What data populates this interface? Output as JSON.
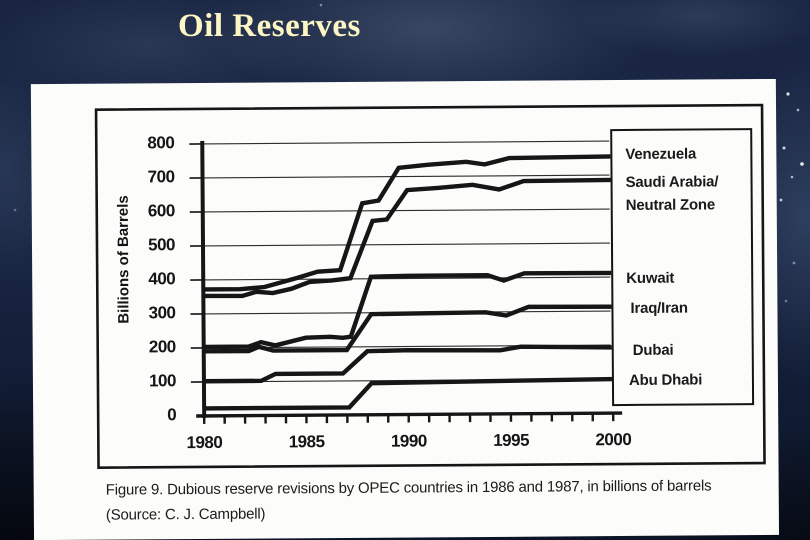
{
  "slide": {
    "title": "Oil Reserves"
  },
  "figure": {
    "caption_line1": "Figure 9. Dubious reserve revisions by OPEC countries in 1986 and 1987, in billions of barrels",
    "caption_line2": "(Source: C. J. Campbell)"
  },
  "chart_data": {
    "type": "line",
    "title": "",
    "xlabel": "",
    "ylabel": "Billions of Barrels",
    "xlim": [
      1979.7,
      2000.4
    ],
    "ylim": [
      0,
      800
    ],
    "y_ticks": [
      0,
      100,
      200,
      300,
      400,
      500,
      600,
      700,
      800
    ],
    "x_ticks": [
      1980,
      1985,
      1990,
      1995,
      2000
    ],
    "x_minor_tick_step": 1,
    "grid": true,
    "legend_position": "right-box",
    "ink_color": "#161616",
    "paper_color": "#fcfcfa",
    "legend_lines": [
      "Venezuela",
      "Saudi Arabia/",
      "Neutral Zone",
      "Kuwait",
      "Iraq/Iran",
      "Dubai",
      "Abu Dhabi"
    ],
    "series": [
      {
        "name": "Venezuela",
        "points": [
          [
            1980,
            372
          ],
          [
            1981.8,
            372
          ],
          [
            1983,
            378
          ],
          [
            1984.6,
            404
          ],
          [
            1985.6,
            422
          ],
          [
            1986.7,
            426
          ],
          [
            1987.8,
            622
          ],
          [
            1988.6,
            630
          ],
          [
            1989.6,
            726
          ],
          [
            1991,
            734
          ],
          [
            1992.9,
            742
          ],
          [
            1993.8,
            734
          ],
          [
            1995,
            752
          ],
          [
            2000,
            755
          ]
        ]
      },
      {
        "name": "Saudi Arabia/Neutral Zone",
        "points": [
          [
            1980,
            353
          ],
          [
            1981.9,
            352
          ],
          [
            1982.6,
            364
          ],
          [
            1983.4,
            360
          ],
          [
            1984.3,
            372
          ],
          [
            1985.2,
            392
          ],
          [
            1986.3,
            396
          ],
          [
            1987.2,
            402
          ],
          [
            1988.3,
            570
          ],
          [
            1989,
            574
          ],
          [
            1990,
            660
          ],
          [
            1991.5,
            666
          ],
          [
            1993.2,
            674
          ],
          [
            1994.5,
            660
          ],
          [
            1995.7,
            684
          ],
          [
            2000,
            686
          ]
        ]
      },
      {
        "name": "Kuwait",
        "points": [
          [
            1980,
            203
          ],
          [
            1982.2,
            203
          ],
          [
            1982.8,
            216
          ],
          [
            1983.5,
            206
          ],
          [
            1985,
            228
          ],
          [
            1986.2,
            230
          ],
          [
            1986.8,
            227
          ],
          [
            1987.2,
            230
          ],
          [
            1988.2,
            406
          ],
          [
            1990,
            408
          ],
          [
            1993.9,
            408
          ],
          [
            1994.7,
            392
          ],
          [
            1995.7,
            413
          ],
          [
            2000,
            412
          ]
        ]
      },
      {
        "name": "Iraq/Iran",
        "points": [
          [
            1980,
            190
          ],
          [
            1982.2,
            190
          ],
          [
            1982.7,
            202
          ],
          [
            1983.4,
            191
          ],
          [
            1987,
            191
          ],
          [
            1988.2,
            296
          ],
          [
            1990,
            297
          ],
          [
            1993.8,
            299
          ],
          [
            1994.8,
            289
          ],
          [
            1995.9,
            314
          ],
          [
            2000,
            313
          ]
        ]
      },
      {
        "name": "Dubai",
        "points": [
          [
            1980,
            102
          ],
          [
            1982.8,
            102
          ],
          [
            1983.5,
            122
          ],
          [
            1986.8,
            122
          ],
          [
            1988,
            187
          ],
          [
            1990,
            189
          ],
          [
            1994.5,
            187
          ],
          [
            1995.5,
            197
          ],
          [
            2000,
            193
          ]
        ]
      },
      {
        "name": "Abu Dhabi",
        "points": [
          [
            1980,
            22
          ],
          [
            1987.1,
            22
          ],
          [
            1988.2,
            93
          ],
          [
            2000,
            100
          ]
        ]
      }
    ]
  }
}
